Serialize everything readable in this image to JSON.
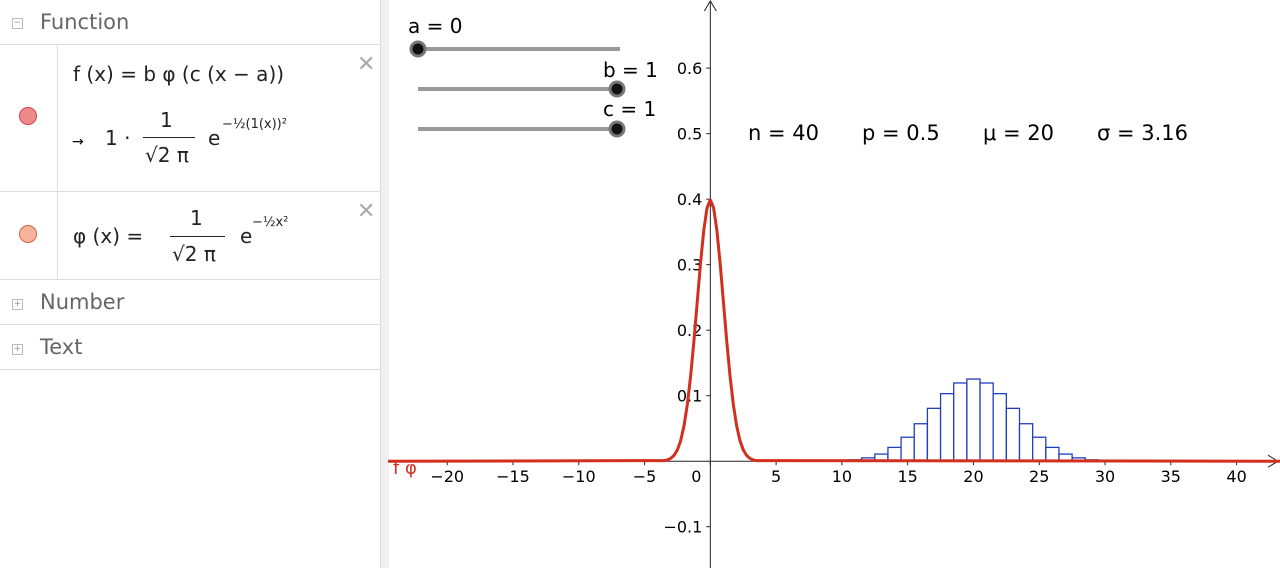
{
  "sidebar": {
    "sections": [
      "Function",
      "Number",
      "Text"
    ],
    "f": {
      "definition": "f (x) = b φ (c  (x − a))",
      "arrow": "→",
      "prefix": "1 ·",
      "numerator": "1",
      "denominator": "√2 π",
      "base": "e",
      "exponent": "−½(1(x))²"
    },
    "phi": {
      "definition": "φ (x)  =",
      "numerator": "1",
      "denominator": "√2 π",
      "base": "e",
      "exponent": "−½x²"
    }
  },
  "sliders": [
    "a = 0",
    "b = 1",
    "c = 1"
  ],
  "stats": [
    "n = 40",
    "p = 0.5",
    "μ = 20",
    "σ = 3.16"
  ],
  "graph_labels": {
    "phi": "φ"
  },
  "chart_data": [
    {
      "type": "histogram",
      "color": "#1f3fbf",
      "bins": [
        9.5,
        10.5,
        11.5,
        12.5,
        13.5,
        14.5,
        15.5,
        16.5,
        17.5,
        18.5,
        19.5,
        20.5,
        21.5,
        22.5,
        23.5,
        24.5,
        25.5,
        26.5,
        27.5,
        28.5,
        29.5,
        30.5
      ],
      "values": [
        0.0008,
        0.0021,
        0.0051,
        0.0109,
        0.0211,
        0.0366,
        0.0572,
        0.0807,
        0.1031,
        0.1194,
        0.1254,
        0.1194,
        0.1031,
        0.0807,
        0.0572,
        0.0366,
        0.0211,
        0.0109,
        0.0051,
        0.0021,
        0.0008
      ],
      "xlim": [
        -24.5,
        43.3
      ],
      "ylim": [
        -0.163,
        0.704
      ],
      "xticks": [
        {
          "value": -20,
          "label": "−20"
        },
        {
          "value": -15,
          "label": "−15"
        },
        {
          "value": -10,
          "label": "−10"
        },
        {
          "value": -5,
          "label": "−5"
        },
        0,
        5,
        10,
        15,
        20,
        25,
        30,
        35,
        40
      ],
      "yticks": [
        {
          "value": -0.1,
          "label": "−0.1"
        },
        0.1,
        0.2,
        0.3,
        0.4,
        0.5,
        0.6
      ]
    },
    {
      "type": "line",
      "x": [
        -24.5,
        -3.5,
        -3.25,
        -3,
        -2.75,
        -2.5,
        -2.25,
        -2,
        -1.75,
        -1.5,
        -1.25,
        -1,
        -0.75,
        -0.5,
        -0.25,
        0,
        0.25,
        0.5,
        0.75,
        1,
        1.25,
        1.5,
        1.75,
        2,
        2.25,
        2.5,
        2.75,
        3,
        3.25,
        3.5,
        43.3
      ],
      "series": [
        {
          "name": "f",
          "color": "#d32f1e",
          "values": [
            0,
            0.0009,
            0.002,
            0.0044,
            0.0091,
            0.0175,
            0.0317,
            0.054,
            0.0863,
            0.1295,
            0.1826,
            0.242,
            0.3011,
            0.3521,
            0.3867,
            0.3989,
            0.3867,
            0.3521,
            0.3011,
            0.242,
            0.1826,
            0.1295,
            0.0863,
            0.054,
            0.0317,
            0.0175,
            0.0091,
            0.0044,
            0.002,
            0.0009,
            0
          ]
        }
      ]
    }
  ]
}
